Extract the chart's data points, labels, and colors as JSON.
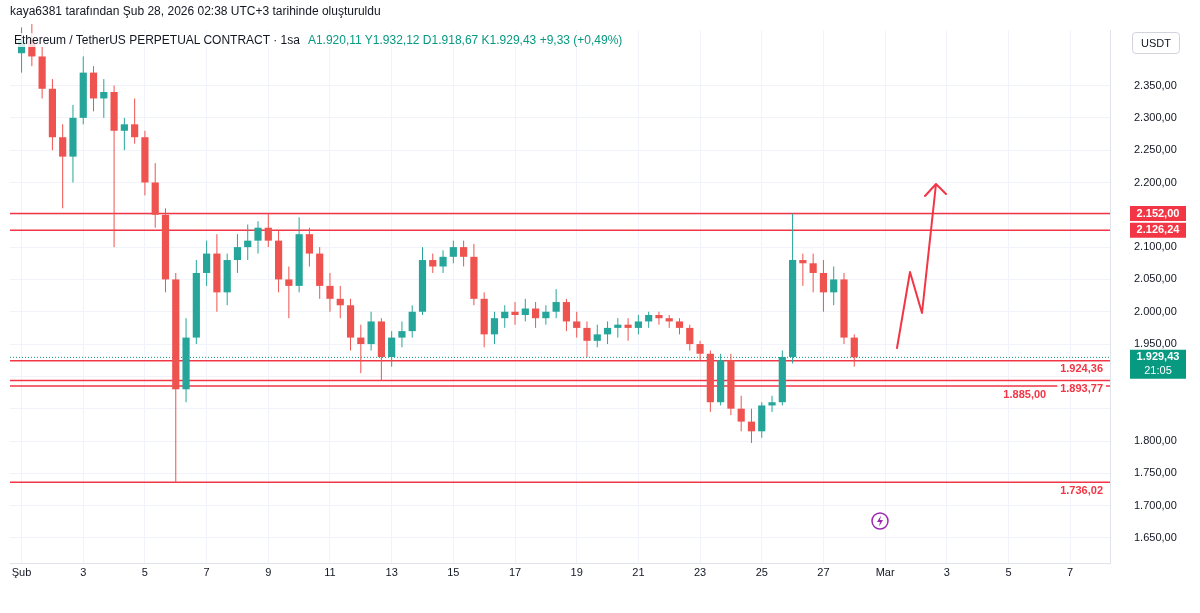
{
  "chart_data": {
    "type": "candlestick",
    "title": "Ethereum / TetherUS PERPETUAL CONTRACT · 1sa",
    "subtitle": "A1.920,11 Y1.932,12 D1.918,67 K1.929,43 +9,33 (+0,49%)",
    "ylabel": "USDT",
    "annotations": [
      "kaya6381 tarafından Şub 28, 2026 02:38 UTC+3 tarihinde oluşturuldu",
      "21:05"
    ],
    "x": [
      "2026-02-01T00:00",
      "2026-02-01T08:00",
      "2026-02-01T16:00",
      "2026-02-02T00:00",
      "2026-02-02T08:00",
      "2026-02-02T16:00",
      "2026-02-03T00:00",
      "2026-02-03T08:00",
      "2026-02-03T16:00",
      "2026-02-04T00:00",
      "2026-02-04T08:00",
      "2026-02-04T16:00",
      "2026-02-05T00:00",
      "2026-02-05T08:00",
      "2026-02-05T16:00",
      "2026-02-06T00:00",
      "2026-02-06T08:00",
      "2026-02-06T16:00",
      "2026-02-07T00:00",
      "2026-02-07T08:00",
      "2026-02-07T16:00",
      "2026-02-08T00:00",
      "2026-02-08T08:00",
      "2026-02-08T16:00",
      "2026-02-09T00:00",
      "2026-02-09T08:00",
      "2026-02-09T16:00",
      "2026-02-10T00:00",
      "2026-02-10T08:00",
      "2026-02-10T16:00",
      "2026-02-11T00:00",
      "2026-02-11T08:00",
      "2026-02-11T16:00",
      "2026-02-12T00:00",
      "2026-02-12T08:00",
      "2026-02-12T16:00",
      "2026-02-13T00:00",
      "2026-02-13T08:00",
      "2026-02-13T16:00",
      "2026-02-14T00:00",
      "2026-02-14T08:00",
      "2026-02-14T16:00",
      "2026-02-15T00:00",
      "2026-02-15T08:00",
      "2026-02-15T16:00",
      "2026-02-16T00:00",
      "2026-02-16T08:00",
      "2026-02-16T16:00",
      "2026-02-17T00:00",
      "2026-02-17T08:00",
      "2026-02-17T16:00",
      "2026-02-18T00:00",
      "2026-02-18T08:00",
      "2026-02-18T16:00",
      "2026-02-19T00:00",
      "2026-02-19T08:00",
      "2026-02-19T16:00",
      "2026-02-20T00:00",
      "2026-02-20T08:00",
      "2026-02-20T16:00",
      "2026-02-21T00:00",
      "2026-02-21T08:00",
      "2026-02-21T16:00",
      "2026-02-22T00:00",
      "2026-02-22T08:00",
      "2026-02-22T16:00",
      "2026-02-23T00:00",
      "2026-02-23T08:00",
      "2026-02-23T16:00",
      "2026-02-24T00:00",
      "2026-02-24T08:00",
      "2026-02-24T16:00",
      "2026-02-25T00:00",
      "2026-02-25T08:00",
      "2026-02-25T16:00",
      "2026-02-26T00:00",
      "2026-02-26T08:00",
      "2026-02-26T16:00",
      "2026-02-27T00:00",
      "2026-02-27T08:00",
      "2026-02-27T16:00",
      "2026-02-28T00:00"
    ],
    "ohlc": [
      [
        2400,
        2440,
        2370,
        2420
      ],
      [
        2420,
        2445,
        2380,
        2395
      ],
      [
        2395,
        2410,
        2330,
        2345
      ],
      [
        2345,
        2360,
        2250,
        2270
      ],
      [
        2270,
        2290,
        2160,
        2240
      ],
      [
        2240,
        2320,
        2200,
        2300
      ],
      [
        2300,
        2395,
        2290,
        2370
      ],
      [
        2370,
        2380,
        2310,
        2330
      ],
      [
        2330,
        2360,
        2300,
        2340
      ],
      [
        2340,
        2350,
        2100,
        2280
      ],
      [
        2280,
        2300,
        2250,
        2290
      ],
      [
        2290,
        2330,
        2260,
        2270
      ],
      [
        2270,
        2280,
        2180,
        2200
      ],
      [
        2200,
        2230,
        2130,
        2150
      ],
      [
        2150,
        2160,
        2030,
        2050
      ],
      [
        2050,
        2060,
        1736.02,
        1880
      ],
      [
        1880,
        1990,
        1860,
        1960
      ],
      [
        1960,
        2080,
        1950,
        2060
      ],
      [
        2060,
        2110,
        2040,
        2090
      ],
      [
        2090,
        2120,
        2000,
        2030
      ],
      [
        2030,
        2090,
        2010,
        2080
      ],
      [
        2080,
        2120,
        2060,
        2100
      ],
      [
        2100,
        2135,
        2080,
        2110
      ],
      [
        2110,
        2140,
        2090,
        2130
      ],
      [
        2130,
        2152,
        2100,
        2110
      ],
      [
        2110,
        2125,
        2030,
        2050
      ],
      [
        2050,
        2070,
        1990,
        2040
      ],
      [
        2040,
        2146,
        2030,
        2120
      ],
      [
        2120,
        2130,
        2070,
        2090
      ],
      [
        2090,
        2100,
        2020,
        2040
      ],
      [
        2040,
        2060,
        2000,
        2020
      ],
      [
        2020,
        2040,
        1990,
        2010
      ],
      [
        2010,
        2020,
        1940,
        1960
      ],
      [
        1960,
        1980,
        1905,
        1950
      ],
      [
        1950,
        2000,
        1940,
        1985
      ],
      [
        1985,
        1990,
        1893.77,
        1930
      ],
      [
        1930,
        1970,
        1915,
        1960
      ],
      [
        1960,
        1985,
        1945,
        1970
      ],
      [
        1970,
        2010,
        1960,
        2000
      ],
      [
        2000,
        2100,
        1995,
        2080
      ],
      [
        2080,
        2090,
        2060,
        2070
      ],
      [
        2070,
        2095,
        2060,
        2085
      ],
      [
        2085,
        2110,
        2075,
        2100
      ],
      [
        2100,
        2110,
        2070,
        2085
      ],
      [
        2085,
        2105,
        2010,
        2020
      ],
      [
        2020,
        2030,
        1945,
        1965
      ],
      [
        1965,
        2000,
        1950,
        1990
      ],
      [
        1990,
        2010,
        1975,
        2000
      ],
      [
        2000,
        2015,
        1980,
        1995
      ],
      [
        1995,
        2020,
        1985,
        2005
      ],
      [
        2005,
        2015,
        1975,
        1990
      ],
      [
        1990,
        2010,
        1980,
        2000
      ],
      [
        2000,
        2035,
        1990,
        2015
      ],
      [
        2015,
        2020,
        1970,
        1985
      ],
      [
        1985,
        2000,
        1960,
        1975
      ],
      [
        1975,
        1985,
        1930,
        1955
      ],
      [
        1955,
        1980,
        1945,
        1965
      ],
      [
        1965,
        1985,
        1950,
        1975
      ],
      [
        1975,
        1990,
        1960,
        1980
      ],
      [
        1980,
        1990,
        1955,
        1975
      ],
      [
        1975,
        1995,
        1965,
        1985
      ],
      [
        1985,
        2000,
        1975,
        1995
      ],
      [
        1995,
        2000,
        1980,
        1990
      ],
      [
        1990,
        1995,
        1975,
        1985
      ],
      [
        1985,
        1990,
        1965,
        1975
      ],
      [
        1975,
        1980,
        1940,
        1950
      ],
      [
        1950,
        1955,
        1925,
        1935
      ],
      [
        1935,
        1940,
        1845,
        1860
      ],
      [
        1860,
        1935,
        1855,
        1925
      ],
      [
        1925,
        1935,
        1840,
        1850
      ],
      [
        1850,
        1870,
        1815,
        1830
      ],
      [
        1830,
        1850,
        1797,
        1815
      ],
      [
        1815,
        1860,
        1805,
        1855
      ],
      [
        1855,
        1870,
        1845,
        1860
      ],
      [
        1860,
        1940,
        1855,
        1930
      ],
      [
        1930,
        2152,
        1920,
        2080
      ],
      [
        2080,
        2090,
        2040,
        2075
      ],
      [
        2075,
        2090,
        2030,
        2060
      ],
      [
        2060,
        2080,
        2000,
        2030
      ],
      [
        2030,
        2070,
        2010,
        2050
      ],
      [
        2050,
        2060,
        1950,
        1960
      ],
      [
        1960,
        1965,
        1915,
        1929.43
      ]
    ],
    "colors": [
      "#26a69a",
      "#ef5350",
      "#ef5350",
      "#ef5350",
      "#ef5350",
      "#26a69a",
      "#26a69a",
      "#ef5350",
      "#26a69a",
      "#ef5350",
      "#26a69a",
      "#ef5350",
      "#ef5350",
      "#ef5350",
      "#ef5350",
      "#ef5350",
      "#26a69a",
      "#26a69a",
      "#26a69a",
      "#ef5350",
      "#26a69a",
      "#26a69a",
      "#26a69a",
      "#26a69a",
      "#ef5350",
      "#ef5350",
      "#ef5350",
      "#26a69a",
      "#ef5350",
      "#ef5350",
      "#ef5350",
      "#ef5350",
      "#ef5350",
      "#ef5350",
      "#26a69a",
      "#ef5350",
      "#26a69a",
      "#26a69a",
      "#26a69a",
      "#26a69a",
      "#ef5350",
      "#26a69a",
      "#26a69a",
      "#ef5350",
      "#ef5350",
      "#ef5350",
      "#26a69a",
      "#26a69a",
      "#ef5350",
      "#26a69a",
      "#ef5350",
      "#26a69a",
      "#26a69a",
      "#ef5350",
      "#ef5350",
      "#ef5350",
      "#26a69a",
      "#26a69a",
      "#26a69a",
      "#ef5350",
      "#26a69a",
      "#26a69a",
      "#ef5350",
      "#ef5350",
      "#ef5350",
      "#ef5350",
      "#ef5350",
      "#ef5350",
      "#26a69a",
      "#ef5350",
      "#ef5350",
      "#ef5350",
      "#26a69a",
      "#26a69a",
      "#26a69a",
      "#26a69a",
      "#ef5350",
      "#ef5350",
      "#ef5350",
      "#26a69a",
      "#ef5350",
      "#ef5350"
    ],
    "xlim": [
      "2026-01-31T15:00",
      "2026-03-08T07:00"
    ],
    "xticks": [
      {
        "value": "2026-02-01",
        "label": "Şub"
      },
      {
        "value": "2026-02-03",
        "label": "3"
      },
      {
        "value": "2026-02-05",
        "label": "5"
      },
      {
        "value": "2026-02-07",
        "label": "7"
      },
      {
        "value": "2026-02-09",
        "label": "9"
      },
      {
        "value": "2026-02-11",
        "label": "11"
      },
      {
        "value": "2026-02-13",
        "label": "13"
      },
      {
        "value": "2026-02-15",
        "label": "15"
      },
      {
        "value": "2026-02-17",
        "label": "17"
      },
      {
        "value": "2026-02-19",
        "label": "19"
      },
      {
        "value": "2026-02-21",
        "label": "21"
      },
      {
        "value": "2026-02-23",
        "label": "23"
      },
      {
        "value": "2026-02-25",
        "label": "25"
      },
      {
        "value": "2026-02-27",
        "label": "27"
      },
      {
        "value": "2026-03-01",
        "label": "Mar"
      },
      {
        "value": "2026-03-03",
        "label": "3"
      },
      {
        "value": "2026-03-05",
        "label": "5"
      },
      {
        "value": "2026-03-07",
        "label": "7"
      }
    ],
    "ylim": [
      1610,
      2435
    ],
    "yticks": [
      {
        "value": 1650,
        "label": "1.650,00"
      },
      {
        "value": 1700,
        "label": "1.700,00"
      },
      {
        "value": 1750,
        "label": "1.750,00"
      },
      {
        "value": 1800,
        "label": "1.800,00"
      },
      {
        "value": 1850,
        "label": null
      },
      {
        "value": 1900,
        "label": null
      },
      {
        "value": 1950,
        "label": "1.950,00"
      },
      {
        "value": 2000,
        "label": "2.000,00"
      },
      {
        "value": 2050,
        "label": "2.050,00"
      },
      {
        "value": 2100,
        "label": "2.100,00"
      },
      {
        "value": 2150,
        "label": null
      },
      {
        "value": 2200,
        "label": "2.200,00"
      },
      {
        "value": 2250,
        "label": "2.250,00"
      },
      {
        "value": 2300,
        "label": "2.300,00"
      },
      {
        "value": 2350,
        "label": "2.350,00"
      }
    ],
    "ref_lines": [
      {
        "axis": "y",
        "value": 2152,
        "label": "2.152,00",
        "color": "#f23645"
      },
      {
        "axis": "y",
        "value": 2126.24,
        "label": "2.126,24",
        "color": "#f23645"
      },
      {
        "axis": "y",
        "value": 1929.43,
        "label": "1.929,43",
        "color": "#089981",
        "line_style": "dotted"
      },
      {
        "axis": "y",
        "value": 1924.36,
        "label": "1.924,36",
        "color": "#f23645"
      },
      {
        "axis": "y",
        "value": 1893.77,
        "label": "1.893,77",
        "color": "#f23645"
      },
      {
        "axis": "y",
        "value": 1885,
        "label": "1.885,00",
        "color": "#f23645"
      },
      {
        "axis": "y",
        "value": 1736.02,
        "label": "1.736,02",
        "color": "#f23645"
      }
    ],
    "grid": true,
    "legend": false
  }
}
